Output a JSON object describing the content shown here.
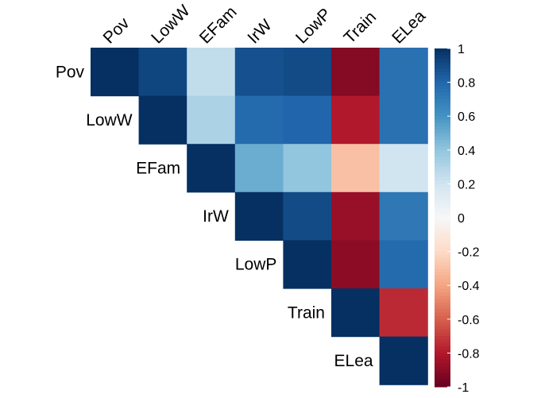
{
  "chart_data": {
    "type": "heatmap",
    "variables": [
      "Pov",
      "LowW",
      "EFam",
      "IrW",
      "LowP",
      "Train",
      "ELea"
    ],
    "matrix": [
      [
        1.0,
        0.92,
        0.25,
        0.88,
        0.9,
        -0.92,
        0.75
      ],
      [
        null,
        1.0,
        0.32,
        0.78,
        0.8,
        -0.8,
        0.75
      ],
      [
        null,
        null,
        1.0,
        0.5,
        0.4,
        -0.3,
        0.2
      ],
      [
        null,
        null,
        null,
        1.0,
        0.9,
        -0.87,
        0.72
      ],
      [
        null,
        null,
        null,
        null,
        1.0,
        -0.9,
        0.78
      ],
      [
        null,
        null,
        null,
        null,
        null,
        1.0,
        -0.75
      ],
      [
        null,
        null,
        null,
        null,
        null,
        null,
        1.0
      ]
    ],
    "colorbar": {
      "ticks": [
        "1",
        "0.8",
        "0.6",
        "0.4",
        "0.2",
        "0",
        "-0.2",
        "-0.4",
        "-0.6",
        "-0.8",
        "-1"
      ],
      "tick_values": [
        1,
        0.8,
        0.6,
        0.4,
        0.2,
        0,
        -0.2,
        -0.4,
        -0.6,
        -0.8,
        -1
      ],
      "range": [
        -1,
        1
      ]
    },
    "colors": {
      "neg_strong": "#67001f",
      "neg_mid": "#d6604d",
      "zero": "#f7f7f7",
      "pos_mid": "#4393c3",
      "pos_strong": "#053061"
    }
  }
}
